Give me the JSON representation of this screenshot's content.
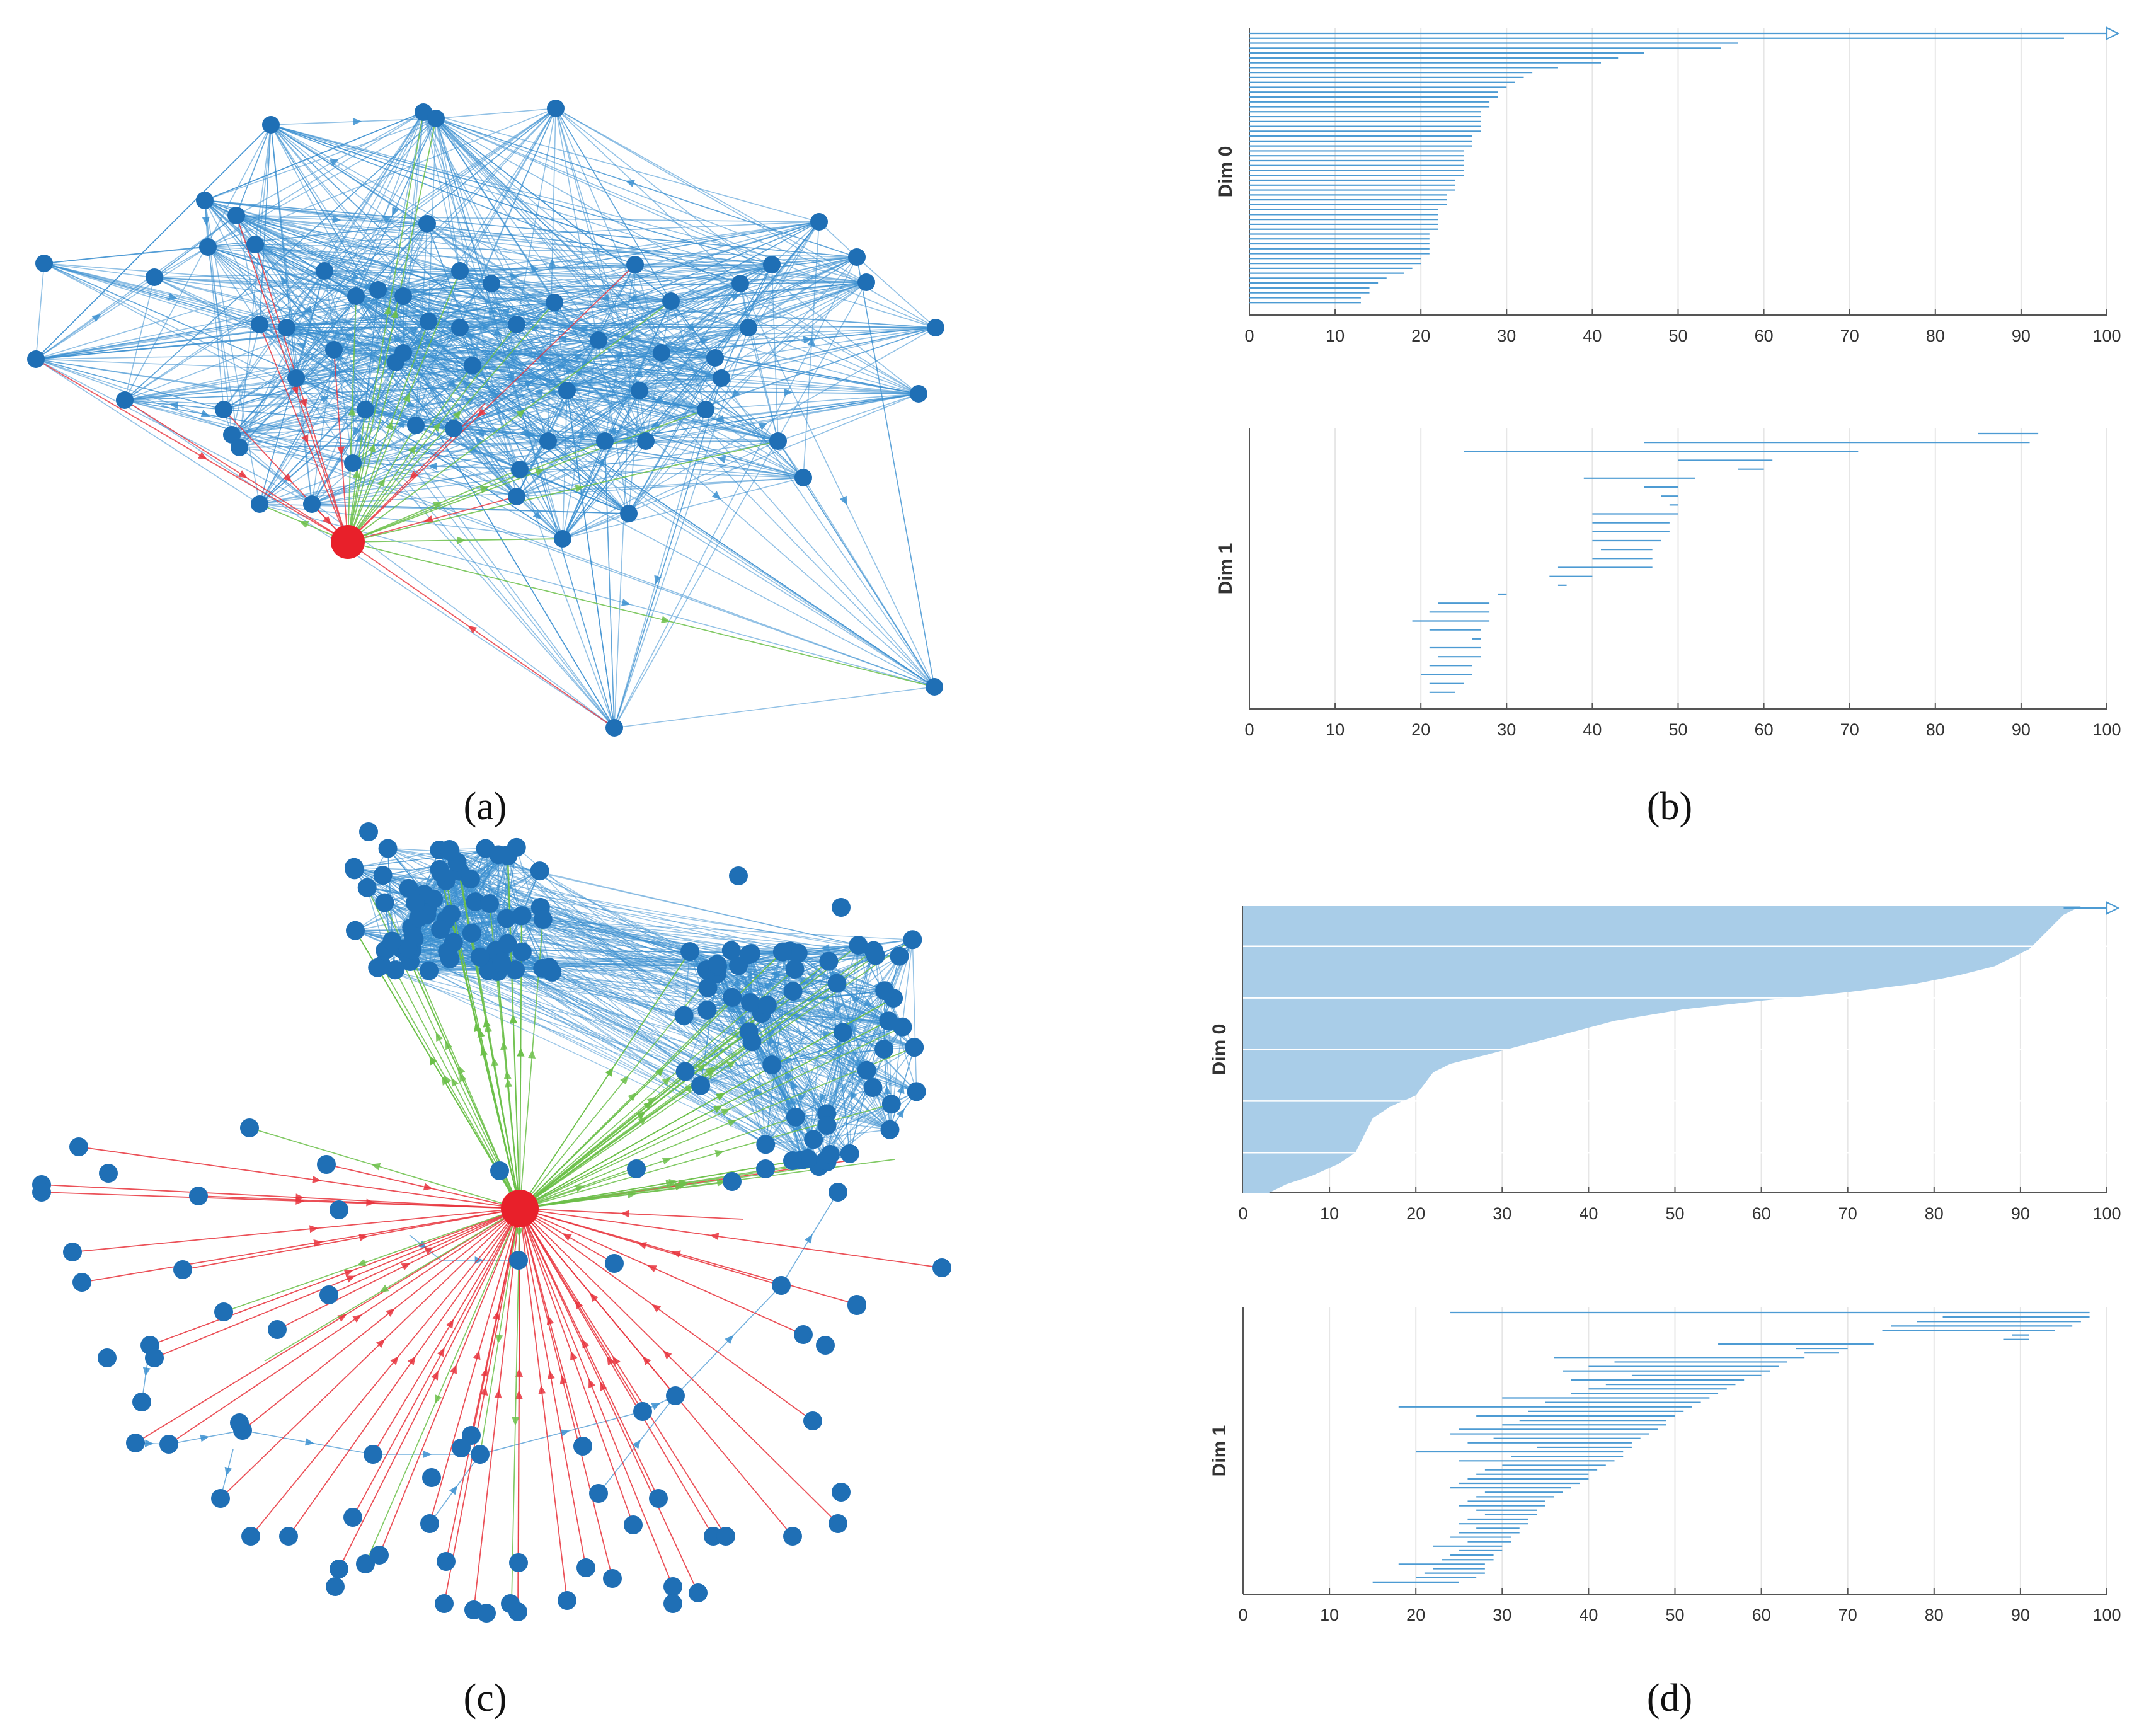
{
  "colors": {
    "node": "#1f6fb5",
    "edge": "#3a8fd0",
    "root": "#e8202a",
    "red_edge": "#e8333c",
    "green_edge": "#6cc04a",
    "barcode": "#4d9bd3",
    "barcode_fill": "#a9cde8",
    "grid": "#e6e6e6",
    "axis": "#555555"
  },
  "chart_data": [
    {
      "id": "a",
      "panel_label": "(a)",
      "type": "network",
      "edge_colors": [
        "blue",
        "red",
        "green"
      ],
      "root_node": "red",
      "node_color": "blue"
    },
    {
      "id": "b0",
      "panel_label": "(b)",
      "type": "barcode",
      "ylabel": "Dim 0",
      "xlim": [
        0,
        100
      ],
      "xticks": [
        0,
        10,
        20,
        30,
        40,
        50,
        60,
        70,
        80,
        90,
        100
      ],
      "infinite_bar": true,
      "bars": [
        [
          0,
          100
        ],
        [
          0,
          95
        ],
        [
          0,
          57
        ],
        [
          0,
          55
        ],
        [
          0,
          46
        ],
        [
          0,
          43
        ],
        [
          0,
          41
        ],
        [
          0,
          36
        ],
        [
          0,
          33
        ],
        [
          0,
          32
        ],
        [
          0,
          31
        ],
        [
          0,
          30
        ],
        [
          0,
          29
        ],
        [
          0,
          29
        ],
        [
          0,
          28
        ],
        [
          0,
          28
        ],
        [
          0,
          27
        ],
        [
          0,
          27
        ],
        [
          0,
          27
        ],
        [
          0,
          27
        ],
        [
          0,
          27
        ],
        [
          0,
          26
        ],
        [
          0,
          26
        ],
        [
          0,
          26
        ],
        [
          0,
          25
        ],
        [
          0,
          25
        ],
        [
          0,
          25
        ],
        [
          0,
          25
        ],
        [
          0,
          25
        ],
        [
          0,
          25
        ],
        [
          0,
          24
        ],
        [
          0,
          24
        ],
        [
          0,
          24
        ],
        [
          0,
          23
        ],
        [
          0,
          23
        ],
        [
          0,
          23
        ],
        [
          0,
          22
        ],
        [
          0,
          22
        ],
        [
          0,
          22
        ],
        [
          0,
          22
        ],
        [
          0,
          22
        ],
        [
          0,
          21
        ],
        [
          0,
          21
        ],
        [
          0,
          21
        ],
        [
          0,
          21
        ],
        [
          0,
          21
        ],
        [
          0,
          20
        ],
        [
          0,
          20
        ],
        [
          0,
          19
        ],
        [
          0,
          18
        ],
        [
          0,
          16
        ],
        [
          0,
          15
        ],
        [
          0,
          14
        ],
        [
          0,
          14
        ],
        [
          0,
          13
        ],
        [
          0,
          13
        ]
      ]
    },
    {
      "id": "b1",
      "type": "barcode",
      "ylabel": "Dim 1",
      "xlim": [
        0,
        100
      ],
      "xticks": [
        0,
        10,
        20,
        30,
        40,
        50,
        60,
        70,
        80,
        90,
        100
      ],
      "bars": [
        [
          85,
          92
        ],
        [
          46,
          91
        ],
        [
          25,
          71
        ],
        [
          50,
          61
        ],
        [
          57,
          60
        ],
        [
          39,
          52
        ],
        [
          46,
          50
        ],
        [
          48,
          50
        ],
        [
          49,
          50
        ],
        [
          40,
          50
        ],
        [
          40,
          49
        ],
        [
          40,
          49
        ],
        [
          40,
          48
        ],
        [
          41,
          47
        ],
        [
          40,
          47
        ],
        [
          36,
          47
        ],
        [
          35,
          40
        ],
        [
          36,
          37
        ],
        [
          29,
          30
        ],
        [
          22,
          28
        ],
        [
          21,
          28
        ],
        [
          19,
          28
        ],
        [
          21,
          27
        ],
        [
          26,
          27
        ],
        [
          21,
          27
        ],
        [
          22,
          27
        ],
        [
          21,
          26
        ],
        [
          20,
          26
        ],
        [
          21,
          25
        ],
        [
          21,
          24
        ]
      ]
    },
    {
      "id": "c",
      "panel_label": "(c)",
      "type": "network",
      "edge_colors": [
        "blue",
        "red",
        "green"
      ],
      "root_node": "red",
      "node_color": "blue"
    },
    {
      "id": "d0",
      "panel_label": "(d)",
      "type": "barcode",
      "ylabel": "Dim 0",
      "xlim": [
        0,
        100
      ],
      "xticks": [
        0,
        10,
        20,
        30,
        40,
        50,
        60,
        70,
        80,
        90,
        100
      ],
      "infinite_bar": true,
      "dense_profile": [
        [
          0,
          97
        ],
        [
          0.03,
          95
        ],
        [
          0.06,
          94
        ],
        [
          0.09,
          93
        ],
        [
          0.12,
          92
        ],
        [
          0.15,
          91
        ],
        [
          0.18,
          89
        ],
        [
          0.21,
          87
        ],
        [
          0.24,
          83
        ],
        [
          0.27,
          78
        ],
        [
          0.3,
          70
        ],
        [
          0.33,
          60
        ],
        [
          0.36,
          51
        ],
        [
          0.4,
          43
        ],
        [
          0.44,
          38
        ],
        [
          0.48,
          33
        ],
        [
          0.52,
          28
        ],
        [
          0.55,
          24
        ],
        [
          0.58,
          22
        ],
        [
          0.62,
          21
        ],
        [
          0.66,
          20
        ],
        [
          0.7,
          17
        ],
        [
          0.74,
          15
        ],
        [
          0.8,
          14
        ],
        [
          0.86,
          13
        ],
        [
          0.9,
          11
        ],
        [
          0.94,
          8
        ],
        [
          0.97,
          5
        ],
        [
          1.0,
          3
        ]
      ]
    },
    {
      "id": "d1",
      "type": "barcode",
      "ylabel": "Dim 1",
      "xlim": [
        0,
        100
      ],
      "xticks": [
        0,
        10,
        20,
        30,
        40,
        50,
        60,
        70,
        80,
        90,
        100
      ],
      "bars": [
        [
          24,
          98
        ],
        [
          81,
          98
        ],
        [
          78,
          97
        ],
        [
          75,
          96
        ],
        [
          74,
          94
        ],
        [
          89,
          91
        ],
        [
          88,
          91
        ],
        [
          55,
          73
        ],
        [
          64,
          70
        ],
        [
          65,
          69
        ],
        [
          36,
          65
        ],
        [
          43,
          63
        ],
        [
          40,
          62
        ],
        [
          37,
          61
        ],
        [
          45,
          60
        ],
        [
          38,
          58
        ],
        [
          42,
          57
        ],
        [
          40,
          56
        ],
        [
          38,
          55
        ],
        [
          30,
          54
        ],
        [
          35,
          53
        ],
        [
          18,
          52
        ],
        [
          33,
          51
        ],
        [
          27,
          50
        ],
        [
          32,
          49
        ],
        [
          30,
          49
        ],
        [
          25,
          48
        ],
        [
          24,
          47
        ],
        [
          29,
          46
        ],
        [
          26,
          45
        ],
        [
          34,
          45
        ],
        [
          20,
          44
        ],
        [
          31,
          44
        ],
        [
          25,
          43
        ],
        [
          30,
          42
        ],
        [
          28,
          41
        ],
        [
          27,
          40
        ],
        [
          26,
          40
        ],
        [
          25,
          39
        ],
        [
          24,
          38
        ],
        [
          28,
          37
        ],
        [
          27,
          36
        ],
        [
          26,
          35
        ],
        [
          25,
          35
        ],
        [
          27,
          34
        ],
        [
          28,
          34
        ],
        [
          26,
          33
        ],
        [
          25,
          33
        ],
        [
          27,
          32
        ],
        [
          25,
          32
        ],
        [
          24,
          31
        ],
        [
          26,
          31
        ],
        [
          22,
          30
        ],
        [
          25,
          30
        ],
        [
          24,
          29
        ],
        [
          23,
          29
        ],
        [
          18,
          28
        ],
        [
          22,
          28
        ],
        [
          21,
          28
        ],
        [
          20,
          27
        ],
        [
          15,
          25
        ]
      ]
    }
  ]
}
